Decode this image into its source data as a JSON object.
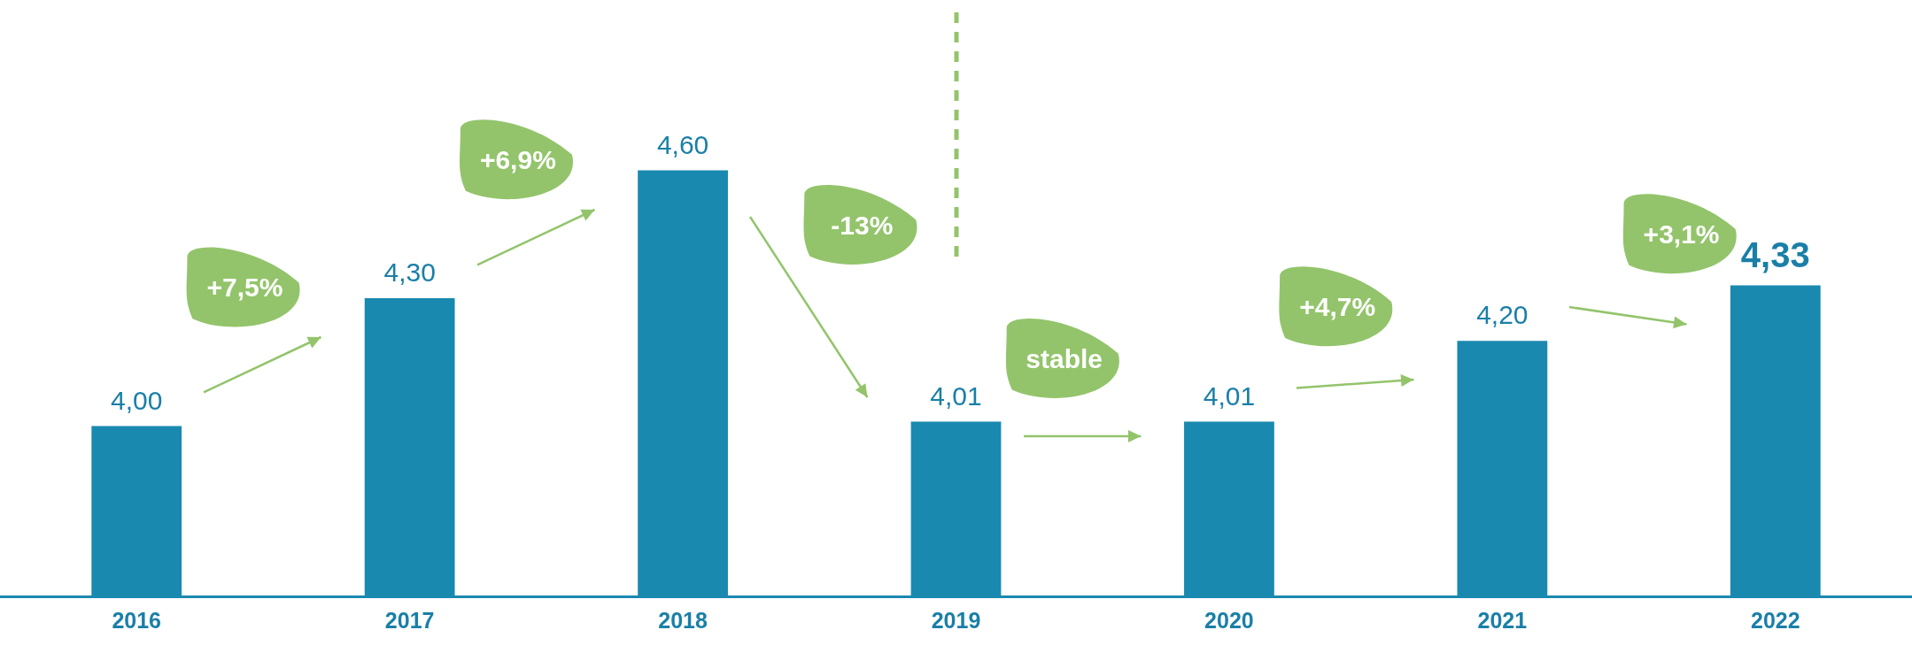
{
  "chart_data": {
    "type": "bar",
    "categories": [
      "2016",
      "2017",
      "2018",
      "2019",
      "2020",
      "2021",
      "2022"
    ],
    "values": [
      4.0,
      4.3,
      4.6,
      4.01,
      4.01,
      4.2,
      4.33
    ],
    "value_labels": [
      "4,00",
      "4,30",
      "4,60",
      "4,01",
      "4,01",
      "4,20",
      "4,33"
    ],
    "color": "#1a89b0",
    "grid": false,
    "legend": false,
    "annotations": [
      "+7,5%",
      "+6,9%",
      "-13%",
      "stable",
      "+4,7%",
      "+3,1%"
    ]
  }
}
